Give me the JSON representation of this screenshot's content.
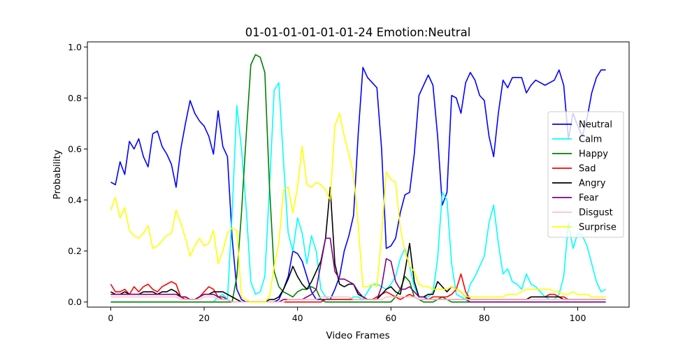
{
  "chart_data": {
    "type": "line",
    "title": "01-01-01-01-01-01-24 Emotion:Neutral",
    "xlabel": "Video Frames",
    "ylabel": "Probability",
    "xlim": [
      -5,
      111
    ],
    "ylim": [
      -0.02,
      1.02
    ],
    "xticks": [
      0,
      20,
      40,
      60,
      80,
      100
    ],
    "yticks": [
      0.0,
      0.2,
      0.4,
      0.6,
      0.8,
      1.0
    ],
    "grid": false,
    "legend_position": "center-right",
    "x_start": 0,
    "x_step": 1,
    "series": [
      {
        "name": "Neutral",
        "color": "#0000ff",
        "values": [
          0.47,
          0.46,
          0.55,
          0.5,
          0.63,
          0.6,
          0.64,
          0.57,
          0.53,
          0.66,
          0.67,
          0.61,
          0.58,
          0.54,
          0.45,
          0.6,
          0.7,
          0.79,
          0.74,
          0.71,
          0.69,
          0.65,
          0.58,
          0.75,
          0.61,
          0.57,
          0.25,
          0.05,
          0.01,
          0.0,
          0.0,
          0.0,
          0.0,
          0.0,
          0.0,
          0.0,
          0.01,
          0.05,
          0.1,
          0.2,
          0.19,
          0.16,
          0.1,
          0.04,
          0.01,
          0.01,
          0.01,
          0.01,
          0.05,
          0.1,
          0.2,
          0.26,
          0.34,
          0.66,
          0.92,
          0.88,
          0.86,
          0.84,
          0.6,
          0.21,
          0.22,
          0.25,
          0.35,
          0.42,
          0.43,
          0.58,
          0.81,
          0.85,
          0.89,
          0.85,
          0.65,
          0.38,
          0.43,
          0.81,
          0.8,
          0.74,
          0.86,
          0.9,
          0.87,
          0.81,
          0.79,
          0.65,
          0.57,
          0.74,
          0.87,
          0.84,
          0.88,
          0.88,
          0.88,
          0.82,
          0.85,
          0.87,
          0.86,
          0.85,
          0.86,
          0.87,
          0.91,
          0.85,
          0.64,
          0.74,
          0.69,
          0.65,
          0.72,
          0.82,
          0.88,
          0.91,
          0.91
        ]
      },
      {
        "name": "Calm",
        "color": "#00ffff",
        "values": [
          0.0,
          0.0,
          0.0,
          0.0,
          0.0,
          0.0,
          0.0,
          0.0,
          0.0,
          0.0,
          0.0,
          0.0,
          0.0,
          0.0,
          0.0,
          0.0,
          0.0,
          0.0,
          0.0,
          0.0,
          0.0,
          0.0,
          0.0,
          0.02,
          0.03,
          0.01,
          0.35,
          0.77,
          0.6,
          0.37,
          0.08,
          0.03,
          0.04,
          0.1,
          0.45,
          0.83,
          0.86,
          0.55,
          0.27,
          0.2,
          0.33,
          0.27,
          0.15,
          0.26,
          0.2,
          0.05,
          0.02,
          0.01,
          0.01,
          0.01,
          0.01,
          0.01,
          0.02,
          0.02,
          0.01,
          0.04,
          0.07,
          0.07,
          0.06,
          0.05,
          0.07,
          0.1,
          0.17,
          0.21,
          0.14,
          0.06,
          0.02,
          0.02,
          0.02,
          0.04,
          0.17,
          0.43,
          0.4,
          0.15,
          0.03,
          0.02,
          0.01,
          0.07,
          0.1,
          0.14,
          0.18,
          0.31,
          0.38,
          0.23,
          0.11,
          0.13,
          0.08,
          0.07,
          0.05,
          0.11,
          0.07,
          0.06,
          0.04,
          0.02,
          0.01,
          0.01,
          0.03,
          0.1,
          0.31,
          0.21,
          0.27,
          0.26,
          0.22,
          0.15,
          0.08,
          0.04,
          0.05
        ]
      },
      {
        "name": "Happy",
        "color": "#008000",
        "values": [
          0.0,
          0.0,
          0.0,
          0.0,
          0.0,
          0.0,
          0.0,
          0.0,
          0.0,
          0.0,
          0.0,
          0.0,
          0.0,
          0.0,
          0.0,
          0.0,
          0.0,
          0.0,
          0.0,
          0.0,
          0.0,
          0.0,
          0.0,
          0.0,
          0.0,
          0.0,
          0.0,
          0.1,
          0.35,
          0.65,
          0.93,
          0.97,
          0.96,
          0.9,
          0.45,
          0.12,
          0.06,
          0.04,
          0.03,
          0.02,
          0.04,
          0.05,
          0.05,
          0.06,
          0.05,
          0.01,
          0.0,
          0.0,
          0.0,
          0.0,
          0.0,
          0.0,
          0.0,
          0.0,
          0.0,
          0.0,
          0.0,
          0.0,
          0.0,
          0.0,
          0.0,
          0.02,
          0.05,
          0.1,
          0.08,
          0.02,
          0.01,
          0.0,
          0.0,
          0.0,
          0.01,
          0.02,
          0.01,
          0.0,
          0.0,
          0.0,
          0.0,
          0.0,
          0.0,
          0.0,
          0.0,
          0.0,
          0.0,
          0.0,
          0.0,
          0.0,
          0.0,
          0.0,
          0.0,
          0.0,
          0.0,
          0.0,
          0.0,
          0.0,
          0.0,
          0.0,
          0.0,
          0.0,
          0.0,
          0.0,
          0.0,
          0.0,
          0.0,
          0.0,
          0.0,
          0.0,
          0.0
        ]
      },
      {
        "name": "Sad",
        "color": "#ff0000",
        "values": [
          0.07,
          0.04,
          0.04,
          0.05,
          0.03,
          0.06,
          0.04,
          0.06,
          0.07,
          0.05,
          0.04,
          0.06,
          0.07,
          0.08,
          0.07,
          0.02,
          0.01,
          0.01,
          0.01,
          0.02,
          0.04,
          0.06,
          0.05,
          0.02,
          0.01,
          0.01,
          0.0,
          0.0,
          0.0,
          0.0,
          0.0,
          0.0,
          0.0,
          0.0,
          0.0,
          0.0,
          0.0,
          0.0,
          0.0,
          0.0,
          0.0,
          0.0,
          0.0,
          0.0,
          0.0,
          0.0,
          0.01,
          0.01,
          0.01,
          0.01,
          0.01,
          0.01,
          0.01,
          0.01,
          0.01,
          0.01,
          0.01,
          0.02,
          0.03,
          0.04,
          0.03,
          0.02,
          0.01,
          0.02,
          0.03,
          0.02,
          0.01,
          0.01,
          0.01,
          0.02,
          0.02,
          0.02,
          0.02,
          0.03,
          0.05,
          0.11,
          0.04,
          0.01,
          0.01,
          0.01,
          0.01,
          0.01,
          0.01,
          0.01,
          0.01,
          0.01,
          0.01,
          0.01,
          0.01,
          0.01,
          0.02,
          0.02,
          0.02,
          0.02,
          0.03,
          0.03,
          0.02,
          0.02,
          0.01,
          0.01,
          0.01,
          0.01,
          0.01,
          0.01,
          0.01,
          0.01,
          0.01
        ]
      },
      {
        "name": "Angry",
        "color": "#000000",
        "values": [
          0.04,
          0.03,
          0.03,
          0.04,
          0.03,
          0.03,
          0.03,
          0.04,
          0.04,
          0.04,
          0.03,
          0.04,
          0.04,
          0.05,
          0.04,
          0.02,
          0.02,
          0.01,
          0.01,
          0.02,
          0.03,
          0.03,
          0.04,
          0.04,
          0.04,
          0.03,
          0.02,
          0.01,
          0.0,
          0.0,
          0.0,
          0.0,
          0.0,
          0.0,
          0.01,
          0.01,
          0.02,
          0.05,
          0.09,
          0.14,
          0.1,
          0.07,
          0.05,
          0.08,
          0.12,
          0.16,
          0.25,
          0.45,
          0.15,
          0.07,
          0.06,
          0.07,
          0.07,
          0.03,
          0.02,
          0.01,
          0.01,
          0.01,
          0.03,
          0.05,
          0.06,
          0.04,
          0.03,
          0.12,
          0.23,
          0.08,
          0.02,
          0.02,
          0.03,
          0.03,
          0.08,
          0.06,
          0.04,
          0.06,
          0.05,
          0.04,
          0.02,
          0.01,
          0.01,
          0.01,
          0.01,
          0.01,
          0.01,
          0.01,
          0.01,
          0.01,
          0.01,
          0.01,
          0.01,
          0.01,
          0.02,
          0.02,
          0.02,
          0.02,
          0.02,
          0.02,
          0.02,
          0.01,
          0.01,
          0.01,
          0.01,
          0.01,
          0.01,
          0.01,
          0.01,
          0.01,
          0.01
        ]
      },
      {
        "name": "Fear",
        "color": "#800080",
        "values": [
          0.03,
          0.03,
          0.03,
          0.03,
          0.03,
          0.03,
          0.03,
          0.03,
          0.03,
          0.03,
          0.03,
          0.03,
          0.03,
          0.03,
          0.03,
          0.02,
          0.02,
          0.01,
          0.01,
          0.02,
          0.03,
          0.03,
          0.03,
          0.02,
          0.02,
          0.01,
          0.0,
          0.0,
          0.0,
          0.0,
          0.0,
          0.0,
          0.0,
          0.0,
          0.0,
          0.0,
          0.0,
          0.01,
          0.01,
          0.01,
          0.01,
          0.01,
          0.02,
          0.03,
          0.05,
          0.15,
          0.25,
          0.25,
          0.12,
          0.09,
          0.09,
          0.08,
          0.07,
          0.04,
          0.02,
          0.01,
          0.01,
          0.01,
          0.06,
          0.17,
          0.16,
          0.08,
          0.05,
          0.05,
          0.06,
          0.04,
          0.02,
          0.02,
          0.01,
          0.01,
          0.01,
          0.01,
          0.01,
          0.01,
          0.01,
          0.01,
          0.01,
          0.0,
          0.0,
          0.0,
          0.0,
          0.0,
          0.0,
          0.0,
          0.0,
          0.0,
          0.0,
          0.0,
          0.0,
          0.0,
          0.0,
          0.0,
          0.0,
          0.0,
          0.0,
          0.0,
          0.0,
          0.0,
          0.0,
          0.0,
          0.0,
          0.0,
          0.0,
          0.0,
          0.0,
          0.0,
          0.0
        ]
      },
      {
        "name": "Disgust",
        "color": "#ffc0cb",
        "values": [
          0.02,
          0.02,
          0.02,
          0.02,
          0.02,
          0.02,
          0.02,
          0.02,
          0.02,
          0.02,
          0.02,
          0.02,
          0.02,
          0.02,
          0.02,
          0.01,
          0.01,
          0.01,
          0.01,
          0.01,
          0.02,
          0.02,
          0.02,
          0.01,
          0.01,
          0.01,
          0.0,
          0.0,
          0.0,
          0.0,
          0.0,
          0.0,
          0.0,
          0.0,
          0.0,
          0.0,
          0.0,
          0.0,
          0.01,
          0.01,
          0.01,
          0.01,
          0.01,
          0.01,
          0.01,
          0.02,
          0.02,
          0.02,
          0.02,
          0.02,
          0.02,
          0.02,
          0.01,
          0.01,
          0.01,
          0.01,
          0.01,
          0.01,
          0.01,
          0.02,
          0.02,
          0.02,
          0.02,
          0.02,
          0.02,
          0.02,
          0.01,
          0.01,
          0.01,
          0.01,
          0.01,
          0.01,
          0.01,
          0.01,
          0.01,
          0.01,
          0.01,
          0.01,
          0.01,
          0.01,
          0.01,
          0.01,
          0.01,
          0.01,
          0.01,
          0.01,
          0.01,
          0.01,
          0.01,
          0.01,
          0.01,
          0.01,
          0.01,
          0.01,
          0.01,
          0.01,
          0.01,
          0.01,
          0.01,
          0.01,
          0.01,
          0.01,
          0.01,
          0.01,
          0.01,
          0.01,
          0.01
        ]
      },
      {
        "name": "Surprise",
        "color": "#ffff00",
        "values": [
          0.36,
          0.41,
          0.33,
          0.37,
          0.28,
          0.26,
          0.25,
          0.27,
          0.3,
          0.21,
          0.22,
          0.24,
          0.26,
          0.27,
          0.36,
          0.31,
          0.25,
          0.18,
          0.22,
          0.25,
          0.22,
          0.23,
          0.28,
          0.15,
          0.2,
          0.27,
          0.29,
          0.28,
          0.02,
          0.01,
          0.0,
          0.0,
          0.0,
          0.0,
          0.02,
          0.14,
          0.23,
          0.44,
          0.45,
          0.35,
          0.45,
          0.61,
          0.46,
          0.45,
          0.47,
          0.46,
          0.44,
          0.4,
          0.69,
          0.74,
          0.65,
          0.58,
          0.5,
          0.3,
          0.06,
          0.06,
          0.07,
          0.06,
          0.26,
          0.51,
          0.48,
          0.47,
          0.29,
          0.2,
          0.14,
          0.12,
          0.07,
          0.06,
          0.06,
          0.05,
          0.05,
          0.05,
          0.05,
          0.06,
          0.05,
          0.04,
          0.02,
          0.02,
          0.02,
          0.02,
          0.02,
          0.02,
          0.02,
          0.02,
          0.02,
          0.03,
          0.03,
          0.03,
          0.04,
          0.05,
          0.05,
          0.05,
          0.05,
          0.05,
          0.05,
          0.04,
          0.04,
          0.03,
          0.03,
          0.04,
          0.03,
          0.03,
          0.03,
          0.02,
          0.02,
          0.02,
          0.02
        ]
      }
    ]
  }
}
